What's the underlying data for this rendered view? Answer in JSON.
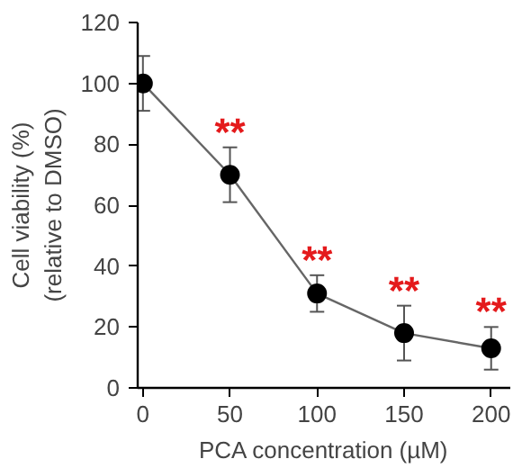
{
  "chart_data": {
    "type": "line",
    "xlabel": "PCA concentration (µM)",
    "ylabel": "Cell viability (%)\n(relative to DMSO)",
    "x": [
      0,
      50,
      100,
      150,
      200
    ],
    "series": [
      {
        "color": "#000000",
        "values": [
          100,
          70,
          31,
          18,
          13
        ],
        "errors": [
          9,
          9,
          6,
          9,
          7
        ]
      }
    ],
    "xlim": [
      -3,
      211
    ],
    "xticks": [
      0,
      50,
      100,
      150,
      200
    ],
    "ylim": [
      0,
      120
    ],
    "yticks": [
      0,
      20,
      40,
      60,
      80,
      100,
      120
    ],
    "grid": false,
    "marker": "circle",
    "line_style": "solid",
    "annotations": [
      {
        "text": "**",
        "x": 50,
        "y": 70
      },
      {
        "text": "**",
        "x": 100,
        "y": 31
      },
      {
        "text": "**",
        "x": 150,
        "y": 18
      },
      {
        "text": "**",
        "x": 200,
        "y": 13
      }
    ]
  }
}
